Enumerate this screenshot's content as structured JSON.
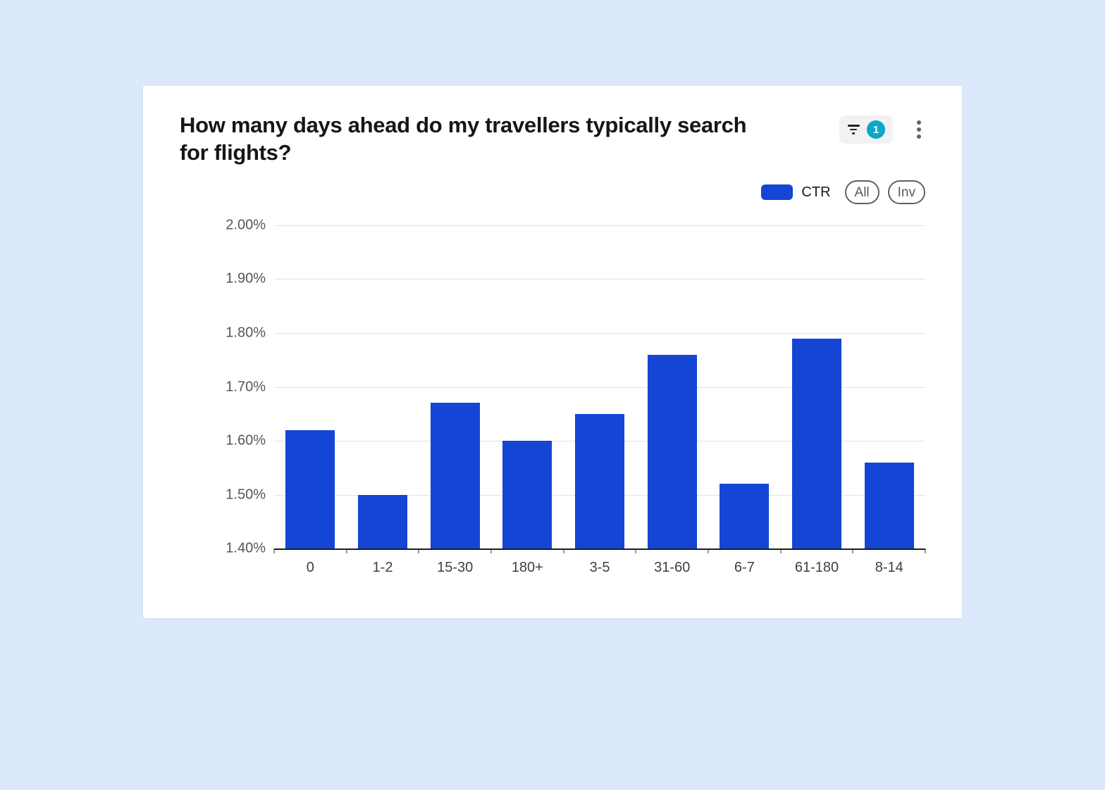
{
  "card": {
    "title": "How many days ahead do my travellers typically search for flights?",
    "filter_count": "1"
  },
  "legend": {
    "ctr_label": "CTR",
    "all_label": "All",
    "inv_label": "Inv"
  },
  "colors": {
    "bar": "#1445d4",
    "badge": "#0ba7c9",
    "background": "#dce9fb"
  },
  "chart_data": {
    "type": "bar",
    "title": "How many days ahead do my travellers typically search for flights?",
    "categories": [
      "0",
      "1-2",
      "15-30",
      "180+",
      "3-5",
      "31-60",
      "6-7",
      "61-180",
      "8-14"
    ],
    "series": [
      {
        "name": "CTR",
        "values": [
          1.62,
          1.5,
          1.67,
          1.6,
          1.65,
          1.76,
          1.52,
          1.79,
          1.56
        ]
      }
    ],
    "xlabel": "",
    "ylabel": "",
    "ylim": [
      1.4,
      2.0
    ],
    "yticks": [
      1.4,
      1.5,
      1.6,
      1.7,
      1.8,
      1.9,
      2.0
    ],
    "ytick_suffix": "%",
    "grid": true,
    "legend_position": "top-right"
  }
}
